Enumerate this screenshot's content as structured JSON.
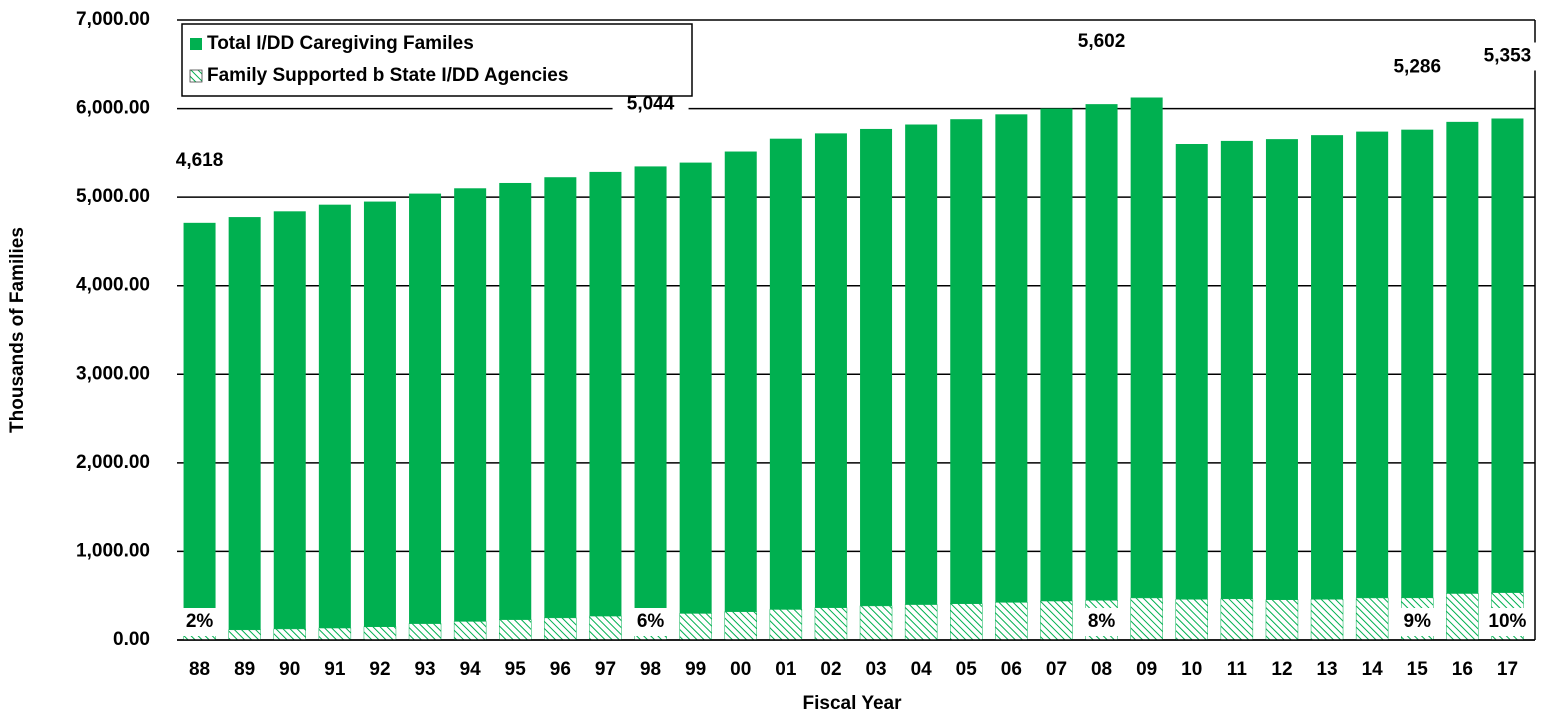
{
  "chart_data": {
    "type": "stacked-bar",
    "x_label": "Fiscal Year",
    "y_label": "Thousands of Families",
    "categories": [
      "88",
      "89",
      "90",
      "91",
      "92",
      "93",
      "94",
      "95",
      "96",
      "97",
      "98",
      "99",
      "00",
      "01",
      "02",
      "03",
      "04",
      "05",
      "06",
      "07",
      "08",
      "09",
      "10",
      "11",
      "12",
      "13",
      "14",
      "15",
      "16",
      "17"
    ],
    "series": [
      {
        "name": "Total I/DD Caregiving Familes",
        "color": "#00b050",
        "fill": "solid",
        "values": [
          4618,
          4660,
          4715,
          4780,
          4800,
          4855,
          4890,
          4930,
          4975,
          5015,
          5044,
          5090,
          5195,
          5315,
          5355,
          5385,
          5420,
          5470,
          5510,
          5560,
          5602,
          5650,
          5140,
          5170,
          5200,
          5240,
          5265,
          5286,
          5325,
          5353
        ],
        "value_labels": [
          "4,618",
          null,
          null,
          null,
          null,
          null,
          null,
          null,
          null,
          null,
          "5,044",
          null,
          null,
          null,
          null,
          null,
          null,
          null,
          null,
          null,
          "5,602",
          null,
          null,
          null,
          null,
          null,
          null,
          "5,286",
          null,
          "5,353"
        ]
      },
      {
        "name": "Family Supported b State I/DD Agencies",
        "color": "#00b050",
        "fill": "hatch",
        "values": [
          92,
          115,
          125,
          135,
          150,
          185,
          210,
          230,
          250,
          270,
          303,
          300,
          320,
          345,
          365,
          385,
          400,
          410,
          425,
          440,
          448,
          475,
          460,
          465,
          455,
          460,
          475,
          476,
          525,
          535
        ]
      }
    ],
    "annotations": [
      {
        "text": "2%",
        "category": "88"
      },
      {
        "text": "6%",
        "category": "98"
      },
      {
        "text": "8%",
        "category": "08"
      },
      {
        "text": "9%",
        "category": "15"
      },
      {
        "text": "10%",
        "category": "17"
      }
    ],
    "ylim": [
      0,
      7000
    ],
    "yticks": [
      {
        "value": 0,
        "label": "0.00"
      },
      {
        "value": 1000,
        "label": "1,000.00"
      },
      {
        "value": 2000,
        "label": "2,000.00"
      },
      {
        "value": 3000,
        "label": "3,000.00"
      },
      {
        "value": 4000,
        "label": "4,000.00"
      },
      {
        "value": 5000,
        "label": "5,000.00"
      },
      {
        "value": 6000,
        "label": "6,000.00"
      },
      {
        "value": 7000,
        "label": "7,000.00"
      }
    ],
    "grid": true,
    "legend": "top-left"
  }
}
